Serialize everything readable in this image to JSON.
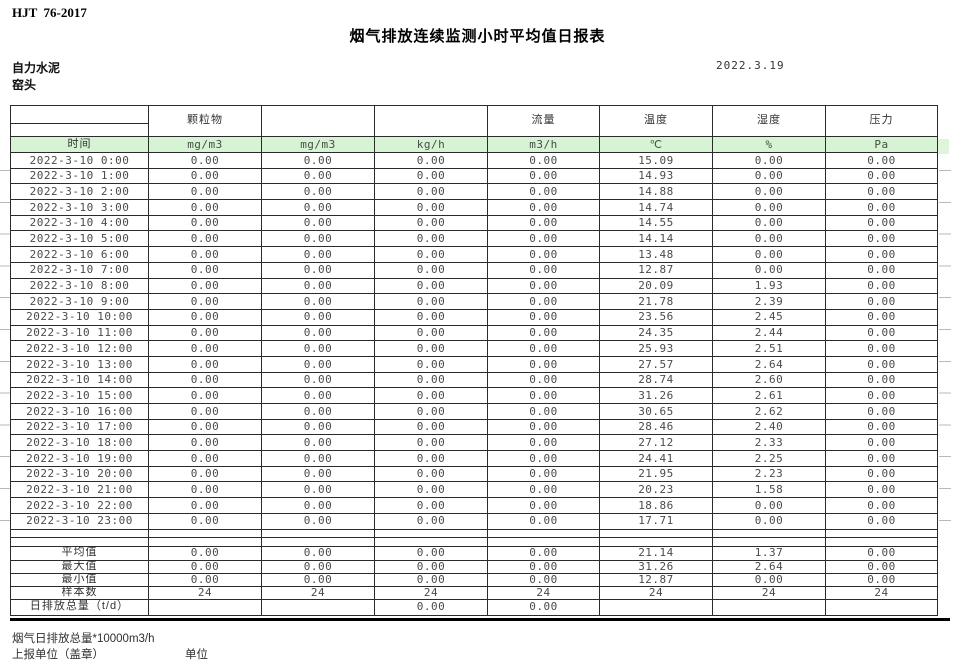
{
  "doc": {
    "code": "HJT  76-2017",
    "title": "烟气排放连续监测小时平均值日报表",
    "company": "自力水泥",
    "monitoring_point": "窑头",
    "date": "2022.3.19"
  },
  "colors": {
    "header_green": "#d6f3d3",
    "border": "#2b2b2b"
  },
  "table": {
    "group_headers": [
      "",
      "颗粒物",
      "",
      "",
      "流量",
      "温度",
      "湿度",
      "压力"
    ],
    "unit_row": [
      "时间",
      "mg/m3",
      "mg/m3",
      "kg/h",
      "m3/h",
      "℃",
      "%",
      "Pa"
    ],
    "rows": [
      [
        "2022-3-10 0:00",
        "0.00",
        "0.00",
        "0.00",
        "0.00",
        "15.09",
        "0.00",
        "0.00"
      ],
      [
        "2022-3-10 1:00",
        "0.00",
        "0.00",
        "0.00",
        "0.00",
        "14.93",
        "0.00",
        "0.00"
      ],
      [
        "2022-3-10 2:00",
        "0.00",
        "0.00",
        "0.00",
        "0.00",
        "14.88",
        "0.00",
        "0.00"
      ],
      [
        "2022-3-10 3:00",
        "0.00",
        "0.00",
        "0.00",
        "0.00",
        "14.74",
        "0.00",
        "0.00"
      ],
      [
        "2022-3-10 4:00",
        "0.00",
        "0.00",
        "0.00",
        "0.00",
        "14.55",
        "0.00",
        "0.00"
      ],
      [
        "2022-3-10 5:00",
        "0.00",
        "0.00",
        "0.00",
        "0.00",
        "14.14",
        "0.00",
        "0.00"
      ],
      [
        "2022-3-10 6:00",
        "0.00",
        "0.00",
        "0.00",
        "0.00",
        "13.48",
        "0.00",
        "0.00"
      ],
      [
        "2022-3-10 7:00",
        "0.00",
        "0.00",
        "0.00",
        "0.00",
        "12.87",
        "0.00",
        "0.00"
      ],
      [
        "2022-3-10 8:00",
        "0.00",
        "0.00",
        "0.00",
        "0.00",
        "20.09",
        "1.93",
        "0.00"
      ],
      [
        "2022-3-10 9:00",
        "0.00",
        "0.00",
        "0.00",
        "0.00",
        "21.78",
        "2.39",
        "0.00"
      ],
      [
        "2022-3-10 10:00",
        "0.00",
        "0.00",
        "0.00",
        "0.00",
        "23.56",
        "2.45",
        "0.00"
      ],
      [
        "2022-3-10 11:00",
        "0.00",
        "0.00",
        "0.00",
        "0.00",
        "24.35",
        "2.44",
        "0.00"
      ],
      [
        "2022-3-10 12:00",
        "0.00",
        "0.00",
        "0.00",
        "0.00",
        "25.93",
        "2.51",
        "0.00"
      ],
      [
        "2022-3-10 13:00",
        "0.00",
        "0.00",
        "0.00",
        "0.00",
        "27.57",
        "2.64",
        "0.00"
      ],
      [
        "2022-3-10 14:00",
        "0.00",
        "0.00",
        "0.00",
        "0.00",
        "28.74",
        "2.60",
        "0.00"
      ],
      [
        "2022-3-10 15:00",
        "0.00",
        "0.00",
        "0.00",
        "0.00",
        "31.26",
        "2.61",
        "0.00"
      ],
      [
        "2022-3-10 16:00",
        "0.00",
        "0.00",
        "0.00",
        "0.00",
        "30.65",
        "2.62",
        "0.00"
      ],
      [
        "2022-3-10 17:00",
        "0.00",
        "0.00",
        "0.00",
        "0.00",
        "28.46",
        "2.40",
        "0.00"
      ],
      [
        "2022-3-10 18:00",
        "0.00",
        "0.00",
        "0.00",
        "0.00",
        "27.12",
        "2.33",
        "0.00"
      ],
      [
        "2022-3-10 19:00",
        "0.00",
        "0.00",
        "0.00",
        "0.00",
        "24.41",
        "2.25",
        "0.00"
      ],
      [
        "2022-3-10 20:00",
        "0.00",
        "0.00",
        "0.00",
        "0.00",
        "21.95",
        "2.23",
        "0.00"
      ],
      [
        "2022-3-10 21:00",
        "0.00",
        "0.00",
        "0.00",
        "0.00",
        "20.23",
        "1.58",
        "0.00"
      ],
      [
        "2022-3-10 22:00",
        "0.00",
        "0.00",
        "0.00",
        "0.00",
        "18.86",
        "0.00",
        "0.00"
      ],
      [
        "2022-3-10 23:00",
        "0.00",
        "0.00",
        "0.00",
        "0.00",
        "17.71",
        "0.00",
        "0.00"
      ]
    ],
    "summary_rows": [
      {
        "label": "平均值",
        "values": [
          "0.00",
          "0.00",
          "0.00",
          "0.00",
          "21.14",
          "1.37",
          "0.00"
        ]
      },
      {
        "label": "最大值",
        "values": [
          "0.00",
          "0.00",
          "0.00",
          "0.00",
          "31.26",
          "2.64",
          "0.00"
        ]
      },
      {
        "label": "最小值",
        "values": [
          "0.00",
          "0.00",
          "0.00",
          "0.00",
          "12.87",
          "0.00",
          "0.00"
        ]
      },
      {
        "label": "样本数",
        "values": [
          "24",
          "24",
          "24",
          "24",
          "24",
          "24",
          "24"
        ]
      },
      {
        "label": "日排放总量（t/d）",
        "values": [
          "",
          "",
          "0.00",
          "0.00",
          "",
          "",
          ""
        ]
      }
    ]
  },
  "footer": {
    "note_total": "烟气日排放总量*10000m3/h",
    "note_report_unit": "上报单位（盖章）",
    "note_unit": "单位"
  }
}
